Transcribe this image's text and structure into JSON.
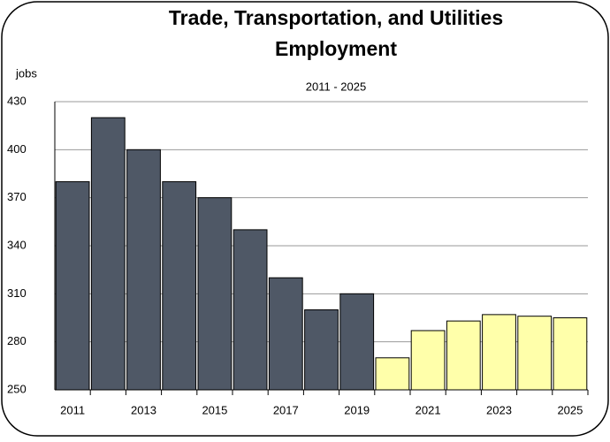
{
  "chart_data": {
    "type": "bar",
    "title": [
      "Trade, Transportation, and Utilities",
      "Employment"
    ],
    "subtitle": "2011 - 2025",
    "y_label": "jobs",
    "categories": [
      "2011",
      null,
      "2013",
      null,
      "2015",
      null,
      "2017",
      null,
      "2019",
      null,
      "2021",
      null,
      "2023",
      null,
      "2025"
    ],
    "values": [
      380,
      420,
      400,
      380,
      370,
      350,
      320,
      300,
      310,
      270,
      287,
      293,
      297,
      296,
      295
    ],
    "colors": [
      "#4f5866",
      "#4f5866",
      "#4f5866",
      "#4f5866",
      "#4f5866",
      "#4f5866",
      "#4f5866",
      "#4f5866",
      "#4f5866",
      "#ffffaa",
      "#ffffaa",
      "#ffffaa",
      "#ffffaa",
      "#ffffaa",
      "#ffffaa"
    ],
    "ylim": [
      250,
      430
    ],
    "yticks": [
      250,
      280,
      310,
      340,
      370,
      400,
      430
    ],
    "grid": true
  }
}
